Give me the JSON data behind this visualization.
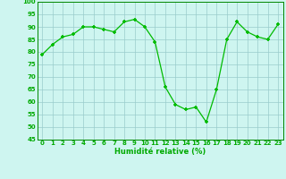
{
  "x": [
    0,
    1,
    2,
    3,
    4,
    5,
    6,
    7,
    8,
    9,
    10,
    11,
    12,
    13,
    14,
    15,
    16,
    17,
    18,
    19,
    20,
    21,
    22,
    23
  ],
  "y": [
    79,
    83,
    86,
    87,
    90,
    90,
    89,
    88,
    92,
    93,
    90,
    84,
    66,
    59,
    57,
    58,
    52,
    65,
    85,
    92,
    88,
    86,
    85,
    91
  ],
  "x_labels": [
    "0",
    "1",
    "2",
    "3",
    "4",
    "5",
    "6",
    "7",
    "8",
    "9",
    "10",
    "11",
    "12",
    "13",
    "14",
    "15",
    "16",
    "17",
    "18",
    "19",
    "20",
    "21",
    "22",
    "23"
  ],
  "xlabel": "Humidité relative (%)",
  "ylim": [
    45,
    100
  ],
  "yticks": [
    45,
    50,
    55,
    60,
    65,
    70,
    75,
    80,
    85,
    90,
    95,
    100
  ],
  "line_color": "#00bb00",
  "marker_color": "#00bb00",
  "bg_color": "#cef5f0",
  "grid_color": "#99cccc",
  "xlabel_color": "#00aa00",
  "tick_color": "#00aa00",
  "tick_fontsize": 5.0,
  "xlabel_fontsize": 6.0
}
